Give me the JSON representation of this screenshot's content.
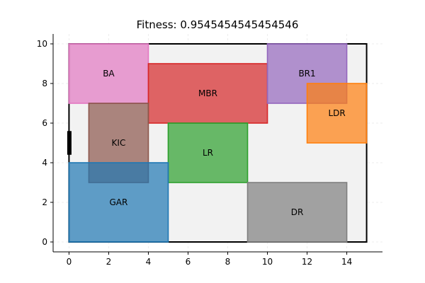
{
  "chart_data": {
    "type": "rectangles",
    "title": "Fitness: 0.9545454545454546",
    "xlim": [
      -0.8,
      15.8
    ],
    "ylim": [
      -0.5,
      10.5
    ],
    "xticks": [
      0,
      2,
      4,
      6,
      8,
      10,
      12,
      14
    ],
    "yticks": [
      0,
      2,
      4,
      6,
      8,
      10
    ],
    "grid": true,
    "boundary": {
      "x": [
        0,
        15
      ],
      "y": [
        0,
        10
      ],
      "fill": "#f2f2f2",
      "stroke": "#000000"
    },
    "door": {
      "x": 0,
      "y": [
        4.4,
        5.6
      ],
      "color": "#000000"
    },
    "rooms": [
      {
        "name": "BA",
        "x0": 0,
        "y0": 7,
        "x1": 4,
        "y1": 10,
        "color": "#e377c2"
      },
      {
        "name": "MBR",
        "x0": 4,
        "y0": 6,
        "x1": 10,
        "y1": 9,
        "color": "#d62728"
      },
      {
        "name": "BR1",
        "x0": 10,
        "y0": 7,
        "x1": 14,
        "y1": 10,
        "color": "#9467bd"
      },
      {
        "name": "KIC",
        "x0": 1,
        "y0": 3,
        "x1": 4,
        "y1": 7,
        "color": "#8c564b"
      },
      {
        "name": "LR",
        "x0": 5,
        "y0": 3,
        "x1": 9,
        "y1": 6,
        "color": "#2ca02c"
      },
      {
        "name": "GAR",
        "x0": 0,
        "y0": 0,
        "x1": 5,
        "y1": 4,
        "color": "#1f77b4"
      },
      {
        "name": "LDR",
        "x0": 12,
        "y0": 5,
        "x1": 15,
        "y1": 8,
        "color": "#ff7f0e"
      },
      {
        "name": "DR",
        "x0": 9,
        "y0": 0,
        "x1": 14,
        "y1": 3,
        "color": "#7f7f7f"
      }
    ]
  }
}
